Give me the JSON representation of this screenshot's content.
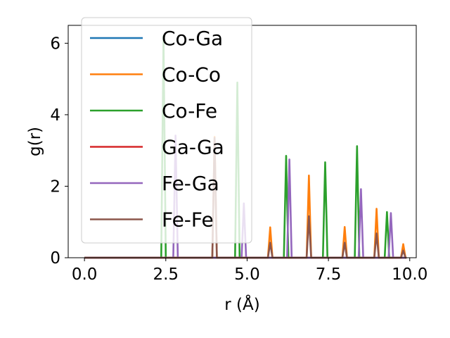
{
  "chart_data": {
    "type": "line",
    "xlabel": "r (Å)",
    "ylabel": "g(r)",
    "xlim": [
      -0.5,
      10.2
    ],
    "ylim": [
      0,
      6.5
    ],
    "x_ticks": [
      "0.0",
      "2.5",
      "5.0",
      "7.5",
      "10.0"
    ],
    "x_tick_values": [
      0,
      2.5,
      5,
      7.5,
      10
    ],
    "y_ticks": [
      "0",
      "2",
      "4",
      "6"
    ],
    "y_tick_values": [
      0,
      2,
      4,
      6
    ],
    "x_range": [
      0,
      9.9
    ],
    "peak_halfwidth": 0.07,
    "grid": false,
    "legend_position": "upper-left",
    "series": [
      {
        "name": "Co-Ga",
        "color": "#1f77b4",
        "peaks": []
      },
      {
        "name": "Co-Co",
        "color": "#ff7f0e",
        "peaks": [
          [
            4.0,
            3.38
          ],
          [
            5.71,
            0.85
          ],
          [
            6.9,
            2.3
          ],
          [
            8.0,
            0.86
          ],
          [
            8.98,
            1.37
          ],
          [
            9.8,
            0.38
          ]
        ]
      },
      {
        "name": "Co-Fe",
        "color": "#2ca02c",
        "peaks": [
          [
            2.43,
            6.2
          ],
          [
            4.7,
            4.9
          ],
          [
            6.2,
            2.85
          ],
          [
            7.4,
            2.67
          ],
          [
            8.38,
            3.12
          ],
          [
            9.3,
            1.28
          ]
        ]
      },
      {
        "name": "Ga-Ga",
        "color": "#d62728",
        "peaks": []
      },
      {
        "name": "Fe-Ga",
        "color": "#9467bd",
        "peaks": [
          [
            2.8,
            3.42
          ],
          [
            4.9,
            1.52
          ],
          [
            6.3,
            2.75
          ],
          [
            8.5,
            1.92
          ],
          [
            9.42,
            1.25
          ]
        ]
      },
      {
        "name": "Fe-Fe",
        "color": "#8c564b",
        "peaks": [
          [
            4.0,
            3.35
          ],
          [
            5.71,
            0.42
          ],
          [
            6.9,
            1.16
          ],
          [
            8.0,
            0.42
          ],
          [
            8.98,
            0.68
          ],
          [
            9.8,
            0.2
          ]
        ]
      }
    ]
  }
}
